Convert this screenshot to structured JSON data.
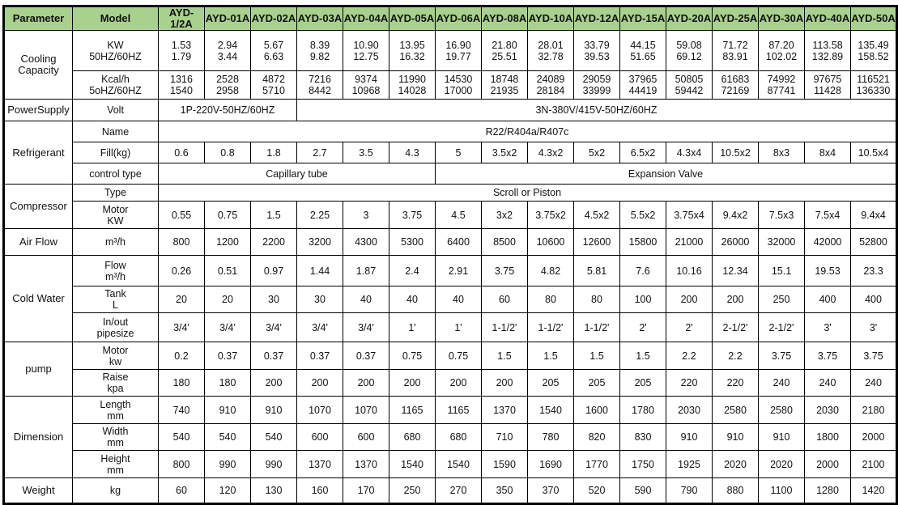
{
  "header": {
    "parameter": "Parameter",
    "model": "Model"
  },
  "models": [
    "AYD-1/2A",
    "AYD-01A",
    "AYD-02A",
    "AYD-03A",
    "AYD-04A",
    "AYD-05A",
    "AYD-06A",
    "AYD-08A",
    "AYD-10A",
    "AYD-12A",
    "AYD-15A",
    "AYD-20A",
    "AYD-25A",
    "AYD-30A",
    "AYD-40A",
    "AYD-50A"
  ],
  "header_color": "#a9d18e",
  "rows": [
    {
      "group": "Cooling\nCapacity",
      "group_span": 2,
      "label": "KW\n50HZ/60HZ",
      "values": [
        "1.53\n1.79",
        "2.94\n3.44",
        "5.67\n6.63",
        "8.39\n9.82",
        "10.90\n12.75",
        "13.95\n16.32",
        "16.90\n19.77",
        "21.80\n25.51",
        "28.01\n32.78",
        "33.79\n39.53",
        "44.15\n51.65",
        "59.08\n69.12",
        "71.72\n83.91",
        "87.20\n102.02",
        "113.58\n132.89",
        "135.49\n158.52"
      ]
    },
    {
      "label": "Kcal/h\n5oHZ/60HZ",
      "values": [
        "1316\n1540",
        "2528\n2958",
        "4872\n5710",
        "7216\n8442",
        "9374\n10968",
        "11990\n14028",
        "14530\n17000",
        "18748\n21935",
        "24089\n28184",
        "29059\n33999",
        "37965\n44419",
        "50805\n59442",
        "61683\n72169",
        "74992\n87741",
        "97675\n11428",
        "116521\n136330"
      ]
    },
    {
      "group": "PowerSupply",
      "group_span": 1,
      "label": "Volt",
      "spans": [
        {
          "text": "1P-220V-50HZ/60HZ",
          "span": 3
        },
        {
          "text": "3N-380V/415V-50HZ/60HZ",
          "span": 13
        }
      ]
    },
    {
      "group": "Refrigerant",
      "group_span": 3,
      "label": "Name",
      "spans": [
        {
          "text": "R22/R404a/R407c",
          "span": 16
        }
      ]
    },
    {
      "label": "Fill(kg)",
      "values": [
        "0.6",
        "0.8",
        "1.8",
        "2.7",
        "3.5",
        "4.3",
        "5",
        "3.5x2",
        "4.3x2",
        "5x2",
        "6.5x2",
        "4.3x4",
        "10.5x2",
        "8x3",
        "8x4",
        "10.5x4"
      ]
    },
    {
      "label": "control type",
      "spans": [
        {
          "text": "Capillary tube",
          "span": 6
        },
        {
          "text": "Expansion Valve",
          "span": 10
        }
      ]
    },
    {
      "group": "Compressor",
      "group_span": 2,
      "label": "Type",
      "spans": [
        {
          "text": "Scroll or Piston",
          "span": 16
        }
      ]
    },
    {
      "label": "Motor\nKW",
      "values": [
        "0.55",
        "0.75",
        "1.5",
        "2.25",
        "3",
        "3.75",
        "4.5",
        "3x2",
        "3.75x2",
        "4.5x2",
        "5.5x2",
        "3.75x4",
        "9.4x2",
        "7.5x3",
        "7.5x4",
        "9.4x4"
      ]
    },
    {
      "group": "Air Flow",
      "group_span": 1,
      "label": "m³/h",
      "values": [
        "800",
        "1200",
        "2200",
        "3200",
        "4300",
        "5300",
        "6400",
        "8500",
        "10600",
        "12600",
        "15800",
        "21000",
        "26000",
        "32000",
        "42000",
        "52800"
      ]
    },
    {
      "group": "Cold Water",
      "group_span": 3,
      "label": "Flow\nm³/h",
      "values": [
        "0.26",
        "0.51",
        "0.97",
        "1.44",
        "1.87",
        "2.4",
        "2.91",
        "3.75",
        "4.82",
        "5.81",
        "7.6",
        "10.16",
        "12.34",
        "15.1",
        "19.53",
        "23.3"
      ]
    },
    {
      "label": "Tank\nL",
      "values": [
        "20",
        "20",
        "30",
        "30",
        "40",
        "40",
        "40",
        "60",
        "80",
        "80",
        "100",
        "200",
        "200",
        "250",
        "400",
        "400"
      ]
    },
    {
      "label": "In/out\npipesize",
      "values": [
        "3/4'",
        "3/4'",
        "3/4'",
        "3/4'",
        "3/4'",
        "1'",
        "1'",
        "1-1/2'",
        "1-1/2'",
        "1-1/2'",
        "2'",
        "2'",
        "2-1/2'",
        "2-1/2'",
        "3'",
        "3'"
      ]
    },
    {
      "group": "pump",
      "group_span": 2,
      "label": "Motor\nkw",
      "values": [
        "0.2",
        "0.37",
        "0.37",
        "0.37",
        "0.37",
        "0.75",
        "0.75",
        "1.5",
        "1.5",
        "1.5",
        "1.5",
        "2.2",
        "2.2",
        "3.75",
        "3.75",
        "3.75"
      ]
    },
    {
      "label": "Raise\nkpa",
      "values": [
        "180",
        "180",
        "200",
        "200",
        "200",
        "200",
        "200",
        "200",
        "205",
        "205",
        "205",
        "220",
        "220",
        "240",
        "240",
        "240"
      ]
    },
    {
      "group": "Dimension",
      "group_span": 3,
      "label": "Length\nmm",
      "values": [
        "740",
        "910",
        "910",
        "1070",
        "1070",
        "1165",
        "1165",
        "1370",
        "1540",
        "1600",
        "1780",
        "2030",
        "2580",
        "2580",
        "2030",
        "2180"
      ]
    },
    {
      "label": "Width\nmm",
      "values": [
        "540",
        "540",
        "540",
        "600",
        "600",
        "680",
        "680",
        "710",
        "780",
        "820",
        "830",
        "910",
        "910",
        "910",
        "1800",
        "2000"
      ]
    },
    {
      "label": "Height\nmm",
      "values": [
        "800",
        "990",
        "990",
        "1370",
        "1370",
        "1540",
        "1540",
        "1590",
        "1690",
        "1770",
        "1750",
        "1925",
        "2020",
        "2020",
        "2000",
        "2100"
      ]
    },
    {
      "group": "Weight",
      "group_span": 1,
      "label": "kg",
      "values": [
        "60",
        "120",
        "130",
        "160",
        "170",
        "250",
        "270",
        "350",
        "370",
        "520",
        "590",
        "790",
        "880",
        "1100",
        "1280",
        "1420"
      ]
    }
  ]
}
